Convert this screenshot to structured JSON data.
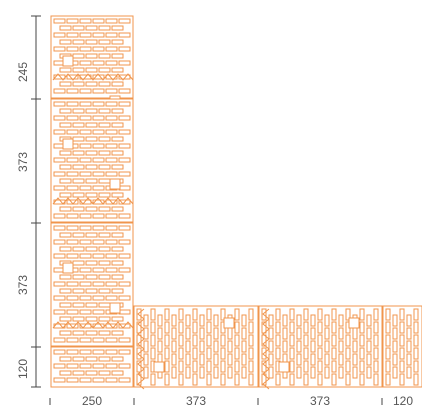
{
  "colors": {
    "brick_stroke": "#f0954c",
    "brick_fill": "#ffffff",
    "dimension_line": "#444444",
    "dimension_text": "#555555",
    "background": "#ffffff"
  },
  "vertical_dimensions": {
    "seg1": "245",
    "seg2": "373",
    "seg3": "373",
    "seg4": "120"
  },
  "horizontal_dimensions": {
    "seg1": "250",
    "seg2": "373",
    "seg3": "373",
    "seg4": "120"
  }
}
